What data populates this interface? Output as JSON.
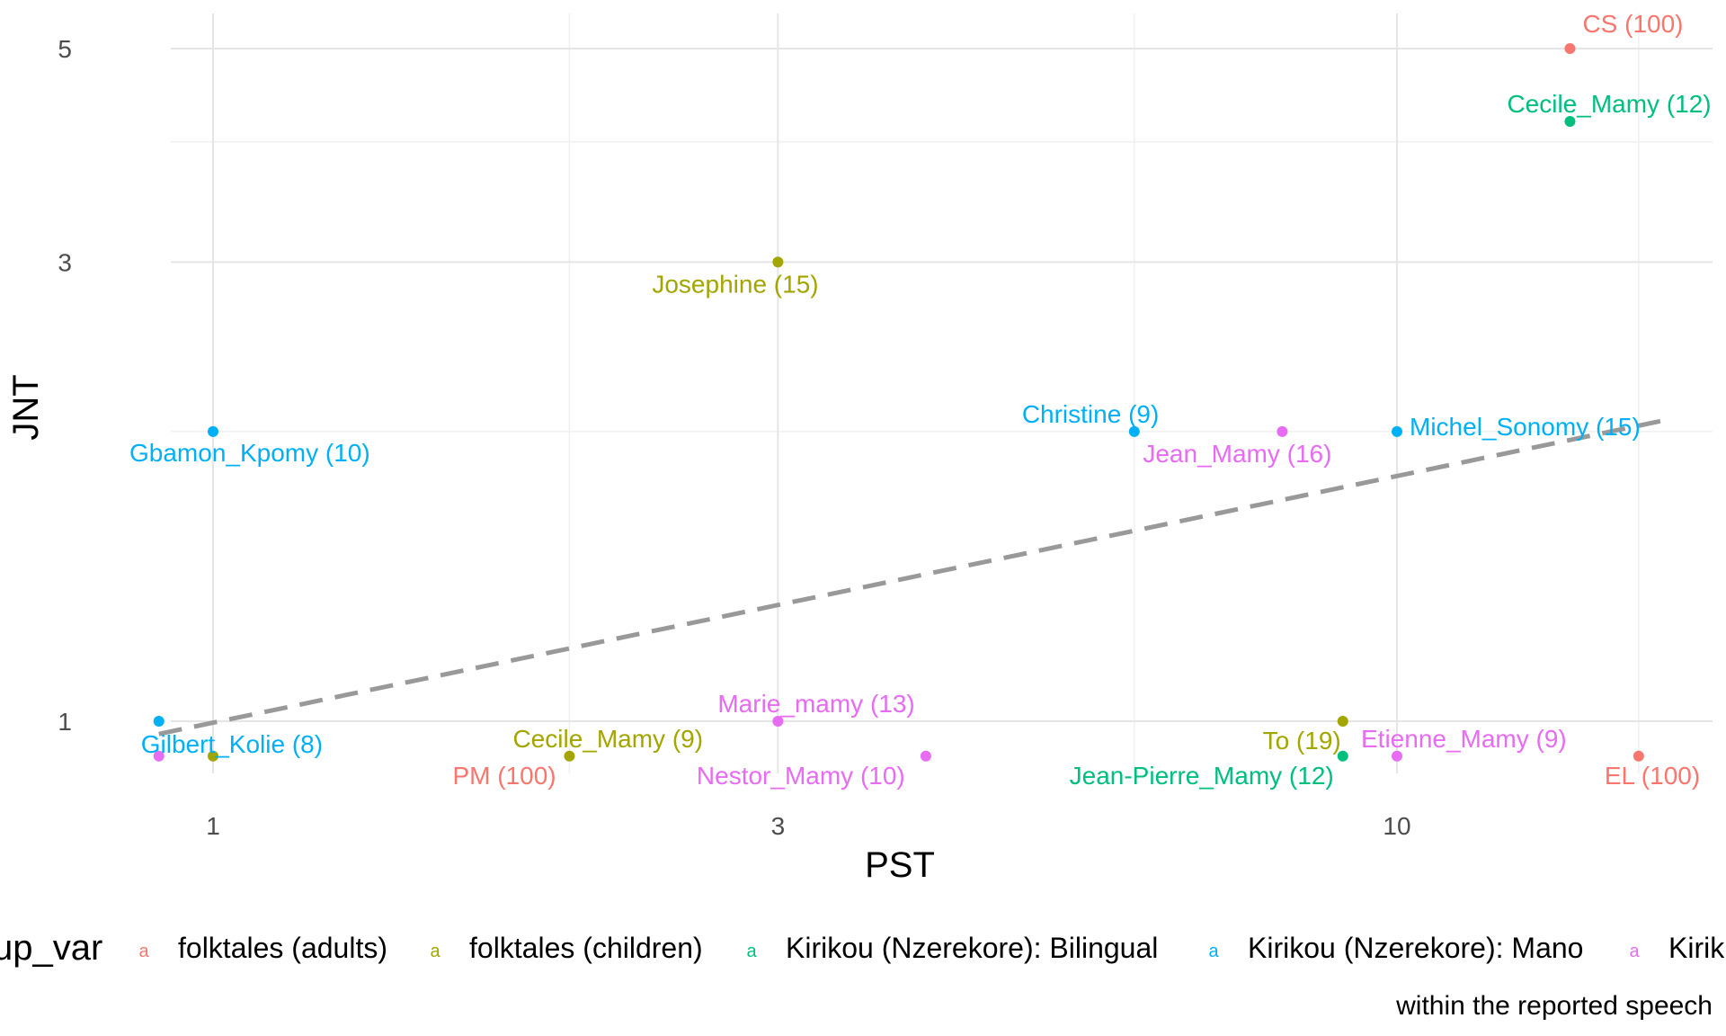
{
  "chart_data": {
    "type": "scatter",
    "title": "",
    "xlabel": "PST",
    "ylabel": "JNT",
    "x_scale": "log",
    "y_scale": "log",
    "xlim": [
      0.9,
      18
    ],
    "ylim": [
      0.9,
      5.2
    ],
    "x_ticks": [
      {
        "value": 1,
        "label": "1"
      },
      {
        "value": 3,
        "label": "3"
      },
      {
        "value": 10,
        "label": "10"
      }
    ],
    "y_ticks": [
      {
        "value": 1,
        "label": "1"
      },
      {
        "value": 3,
        "label": "3"
      },
      {
        "value": 5,
        "label": "5"
      }
    ],
    "minor_x": [
      2,
      6,
      16
    ],
    "minor_y": [
      2,
      4
    ],
    "grid": true,
    "trend_line": {
      "style": "dashed",
      "color": "#999999",
      "x": [
        0.9,
        17
      ],
      "y": [
        0.97,
        2.06
      ]
    },
    "groups": [
      {
        "name": "folktales (adults)",
        "color": "#F8766D"
      },
      {
        "name": "folktales (children)",
        "color": "#A3A500"
      },
      {
        "name": "Kirikou (Nzerekore): Bilingual",
        "color": "#00BF7D"
      },
      {
        "name": "Kirikou (Nzerekore): Mano",
        "color": "#00B0F6"
      },
      {
        "name": "Kirik",
        "color": "#E76BF3"
      }
    ],
    "points": [
      {
        "label": "CS (100)",
        "group": 0,
        "x": 14,
        "y": 5
      },
      {
        "label": "Cecile_Mamy (12)",
        "group": 2,
        "x": 14,
        "y": 4.2
      },
      {
        "label": "Josephine (15)",
        "group": 1,
        "x": 3,
        "y": 3
      },
      {
        "label": "Gbamon_Kpomy (10)",
        "group": 3,
        "x": 1,
        "y": 2
      },
      {
        "label": "Christine (9)",
        "group": 3,
        "x": 6,
        "y": 2
      },
      {
        "label": "Jean_Mamy (16)",
        "group": 4,
        "x": 8,
        "y": 2
      },
      {
        "label": "Michel_Sonomy (15)",
        "group": 3,
        "x": 10,
        "y": 2
      },
      {
        "label": "Marie_mamy (13)",
        "group": 4,
        "x": 3,
        "y": 1
      },
      {
        "label": "To (19)",
        "group": 1,
        "x": 9,
        "y": 1
      },
      {
        "label": "Gilbert_Kolie (8)",
        "group": 3,
        "x": 0.9,
        "y": 1
      },
      {
        "label": "",
        "group": 4,
        "x": 0.9,
        "y": 0.92
      },
      {
        "label": "",
        "group": 1,
        "x": 1,
        "y": 0.92
      },
      {
        "label": "Cecile_Mamy (9)",
        "group": 1,
        "x": 2,
        "y": 0.92
      },
      {
        "label": "PM (100)",
        "group": 0,
        "x": 2,
        "y": 0.92,
        "hidden_point": true
      },
      {
        "label": "Nestor_Mamy (10)",
        "group": 4,
        "x": 4,
        "y": 0.92
      },
      {
        "label": "Jean-Pierre_Mamy (12)",
        "group": 2,
        "x": 9,
        "y": 0.92
      },
      {
        "label": "Etienne_Mamy (9)",
        "group": 4,
        "x": 10,
        "y": 0.92
      },
      {
        "label": "EL (100)",
        "group": 0,
        "x": 16,
        "y": 0.92
      }
    ]
  },
  "legend": {
    "title": "up_var",
    "key_glyph": "a",
    "caption": "within the reported speech"
  }
}
